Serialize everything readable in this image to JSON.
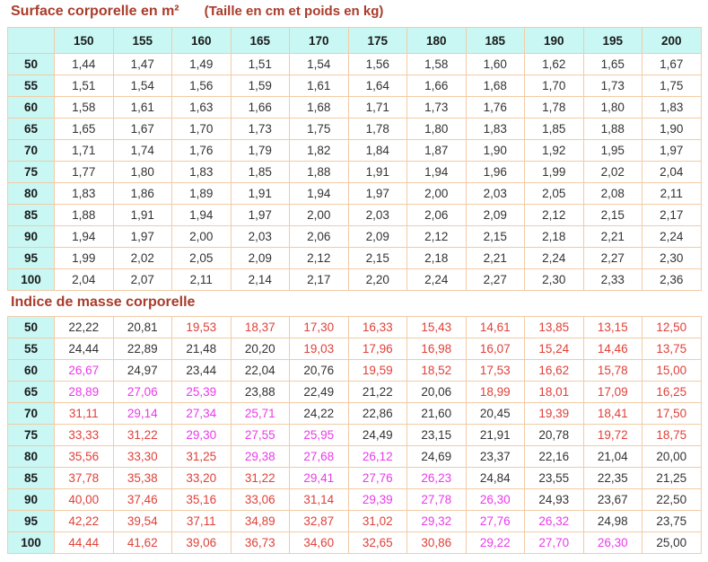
{
  "titles": {
    "bsa_title": "Surface corporelle en m²",
    "bsa_subtitle": "(Taille en cm et poids en kg)",
    "bmi_title": "Indice de masse corporelle"
  },
  "colors": {
    "title_text": "#a93c2b",
    "header_bg": "#c8f7f4",
    "grid_border": "#f2cba6",
    "value_black": "#333333",
    "value_red": "#e04038",
    "value_magenta": "#e93be9"
  },
  "height_headers_cm": [
    "150",
    "155",
    "160",
    "165",
    "170",
    "175",
    "180",
    "185",
    "190",
    "195",
    "200"
  ],
  "weight_rows_kg": [
    "50",
    "55",
    "60",
    "65",
    "70",
    "75",
    "80",
    "85",
    "90",
    "95",
    "100"
  ],
  "bsa_table": {
    "rows": [
      [
        "1,44",
        "1,47",
        "1,49",
        "1,51",
        "1,54",
        "1,56",
        "1,58",
        "1,60",
        "1,62",
        "1,65",
        "1,67"
      ],
      [
        "1,51",
        "1,54",
        "1,56",
        "1,59",
        "1,61",
        "1,64",
        "1,66",
        "1,68",
        "1,70",
        "1,73",
        "1,75"
      ],
      [
        "1,58",
        "1,61",
        "1,63",
        "1,66",
        "1,68",
        "1,71",
        "1,73",
        "1,76",
        "1,78",
        "1,80",
        "1,83"
      ],
      [
        "1,65",
        "1,67",
        "1,70",
        "1,73",
        "1,75",
        "1,78",
        "1,80",
        "1,83",
        "1,85",
        "1,88",
        "1,90"
      ],
      [
        "1,71",
        "1,74",
        "1,76",
        "1,79",
        "1,82",
        "1,84",
        "1,87",
        "1,90",
        "1,92",
        "1,95",
        "1,97"
      ],
      [
        "1,77",
        "1,80",
        "1,83",
        "1,85",
        "1,88",
        "1,91",
        "1,94",
        "1,96",
        "1,99",
        "2,02",
        "2,04"
      ],
      [
        "1,83",
        "1,86",
        "1,89",
        "1,91",
        "1,94",
        "1,97",
        "2,00",
        "2,03",
        "2,05",
        "2,08",
        "2,11"
      ],
      [
        "1,88",
        "1,91",
        "1,94",
        "1,97",
        "2,00",
        "2,03",
        "2,06",
        "2,09",
        "2,12",
        "2,15",
        "2,17"
      ],
      [
        "1,94",
        "1,97",
        "2,00",
        "2,03",
        "2,06",
        "2,09",
        "2,12",
        "2,15",
        "2,18",
        "2,21",
        "2,24"
      ],
      [
        "1,99",
        "2,02",
        "2,05",
        "2,09",
        "2,12",
        "2,15",
        "2,18",
        "2,21",
        "2,24",
        "2,27",
        "2,30"
      ],
      [
        "2,04",
        "2,07",
        "2,11",
        "2,14",
        "2,17",
        "2,20",
        "2,24",
        "2,27",
        "2,30",
        "2,33",
        "2,36"
      ]
    ]
  },
  "bmi_table": {
    "rows": [
      [
        "22,22",
        "20,81",
        "19,53",
        "18,37",
        "17,30",
        "16,33",
        "15,43",
        "14,61",
        "13,85",
        "13,15",
        "12,50"
      ],
      [
        "24,44",
        "22,89",
        "21,48",
        "20,20",
        "19,03",
        "17,96",
        "16,98",
        "16,07",
        "15,24",
        "14,46",
        "13,75"
      ],
      [
        "26,67",
        "24,97",
        "23,44",
        "22,04",
        "20,76",
        "19,59",
        "18,52",
        "17,53",
        "16,62",
        "15,78",
        "15,00"
      ],
      [
        "28,89",
        "27,06",
        "25,39",
        "23,88",
        "22,49",
        "21,22",
        "20,06",
        "18,99",
        "18,01",
        "17,09",
        "16,25"
      ],
      [
        "31,11",
        "29,14",
        "27,34",
        "25,71",
        "24,22",
        "22,86",
        "21,60",
        "20,45",
        "19,39",
        "18,41",
        "17,50"
      ],
      [
        "33,33",
        "31,22",
        "29,30",
        "27,55",
        "25,95",
        "24,49",
        "23,15",
        "21,91",
        "20,78",
        "19,72",
        "18,75"
      ],
      [
        "35,56",
        "33,30",
        "31,25",
        "29,38",
        "27,68",
        "26,12",
        "24,69",
        "23,37",
        "22,16",
        "21,04",
        "20,00"
      ],
      [
        "37,78",
        "35,38",
        "33,20",
        "31,22",
        "29,41",
        "27,76",
        "26,23",
        "24,84",
        "23,55",
        "22,35",
        "21,25"
      ],
      [
        "40,00",
        "37,46",
        "35,16",
        "33,06",
        "31,14",
        "29,39",
        "27,78",
        "26,30",
        "24,93",
        "23,67",
        "22,50"
      ],
      [
        "42,22",
        "39,54",
        "37,11",
        "34,89",
        "32,87",
        "31,02",
        "29,32",
        "27,76",
        "26,32",
        "24,98",
        "23,75"
      ],
      [
        "44,44",
        "41,62",
        "39,06",
        "36,73",
        "34,60",
        "32,65",
        "30,86",
        "29,22",
        "27,70",
        "26,30",
        "25,00"
      ]
    ],
    "cell_colors": [
      [
        "k",
        "k",
        "r",
        "r",
        "r",
        "r",
        "r",
        "r",
        "r",
        "r",
        "r"
      ],
      [
        "k",
        "k",
        "k",
        "k",
        "r",
        "r",
        "r",
        "r",
        "r",
        "r",
        "r"
      ],
      [
        "m",
        "k",
        "k",
        "k",
        "k",
        "r",
        "r",
        "r",
        "r",
        "r",
        "r"
      ],
      [
        "m",
        "m",
        "m",
        "k",
        "k",
        "k",
        "k",
        "r",
        "r",
        "r",
        "r"
      ],
      [
        "r",
        "m",
        "m",
        "m",
        "k",
        "k",
        "k",
        "k",
        "r",
        "r",
        "r"
      ],
      [
        "r",
        "r",
        "m",
        "m",
        "m",
        "k",
        "k",
        "k",
        "k",
        "r",
        "r"
      ],
      [
        "r",
        "r",
        "r",
        "m",
        "m",
        "m",
        "k",
        "k",
        "k",
        "k",
        "k"
      ],
      [
        "r",
        "r",
        "r",
        "r",
        "m",
        "m",
        "m",
        "k",
        "k",
        "k",
        "k"
      ],
      [
        "r",
        "r",
        "r",
        "r",
        "r",
        "m",
        "m",
        "m",
        "k",
        "k",
        "k"
      ],
      [
        "r",
        "r",
        "r",
        "r",
        "r",
        "r",
        "m",
        "m",
        "m",
        "k",
        "k"
      ],
      [
        "r",
        "r",
        "r",
        "r",
        "r",
        "r",
        "r",
        "m",
        "m",
        "m",
        "k"
      ]
    ],
    "color_legend": {
      "k": "black: BMI 20 to 25",
      "r": "red: BMI under 20 or 30 and over",
      "m": "magenta: BMI over 25 to under 30"
    }
  }
}
